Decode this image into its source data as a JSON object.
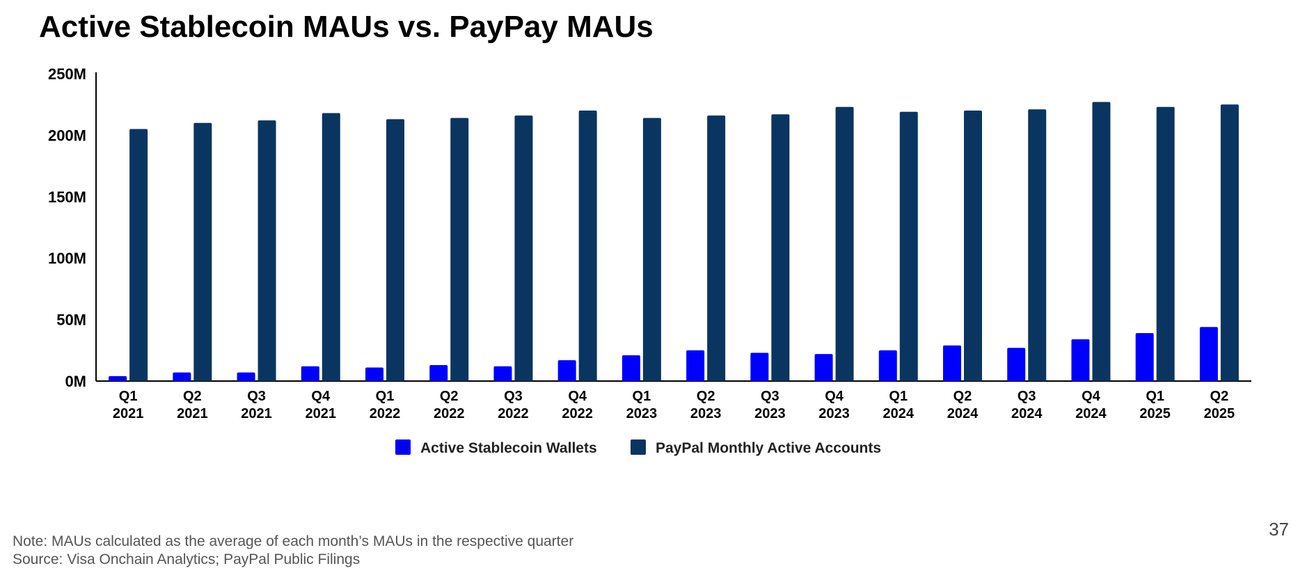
{
  "title": "Active Stablecoin MAUs vs. PayPay MAUs",
  "footer": {
    "note": "Note: MAUs calculated as the average of each month’s MAUs in the respective quarter",
    "source": "Source: Visa Onchain Analytics; PayPal Public Filings",
    "page_number": "37"
  },
  "chart_data": {
    "type": "bar",
    "title": "Active Stablecoin MAUs vs. PayPay MAUs",
    "xlabel": "",
    "ylabel": "",
    "ylim": [
      0,
      250
    ],
    "y_unit": "M",
    "yticks": [
      "0M",
      "50M",
      "100M",
      "150M",
      "200M",
      "250M"
    ],
    "grid": false,
    "legend_position": "bottom-center",
    "categories": [
      [
        "Q1",
        "2021"
      ],
      [
        "Q2",
        "2021"
      ],
      [
        "Q3",
        "2021"
      ],
      [
        "Q4",
        "2021"
      ],
      [
        "Q1",
        "2022"
      ],
      [
        "Q2",
        "2022"
      ],
      [
        "Q3",
        "2022"
      ],
      [
        "Q4",
        "2022"
      ],
      [
        "Q1",
        "2023"
      ],
      [
        "Q2",
        "2023"
      ],
      [
        "Q3",
        "2023"
      ],
      [
        "Q4",
        "2023"
      ],
      [
        "Q1",
        "2024"
      ],
      [
        "Q2",
        "2024"
      ],
      [
        "Q3",
        "2024"
      ],
      [
        "Q4",
        "2024"
      ],
      [
        "Q1",
        "2025"
      ],
      [
        "Q2",
        "2025"
      ]
    ],
    "series": [
      {
        "name": "Active Stablecoin Wallets",
        "color": "#0000ff",
        "values": [
          4,
          7,
          7,
          12,
          11,
          13,
          12,
          17,
          21,
          25,
          23,
          22,
          25,
          29,
          27,
          34,
          39,
          44
        ]
      },
      {
        "name": "PayPal Monthly Active Accounts",
        "color": "#0a3560",
        "values": [
          205,
          210,
          212,
          218,
          213,
          214,
          216,
          220,
          214,
          216,
          217,
          223,
          219,
          220,
          221,
          227,
          223,
          225
        ]
      }
    ]
  }
}
